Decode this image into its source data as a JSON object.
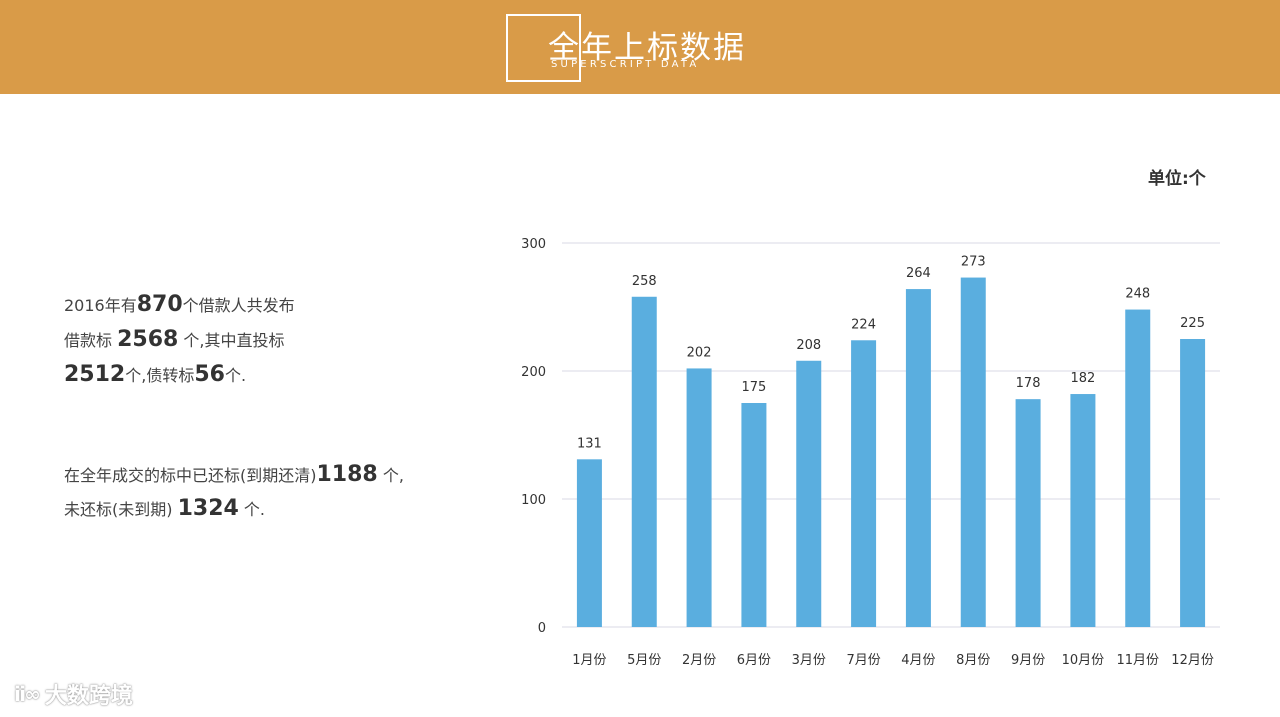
{
  "header": {
    "title": "全年上标数据",
    "subtitle": "SUPERSCRIPT DATA",
    "bg_color": "#D99B48"
  },
  "unit_label": "单位:个",
  "summary": {
    "p1_line1_pre": "2016年有",
    "p1_line1_num": "870",
    "p1_line1_post": "个借款人共发布",
    "p1_line2_pre": "借款标 ",
    "p1_line2_num": "2568",
    "p1_line2_post": " 个,其中直投标",
    "p1_line3_num1": "2512",
    "p1_line3_mid": "个,债转标",
    "p1_line3_num2": "56",
    "p1_line3_post": "个.",
    "p2_line1_pre": "在全年成交的标中已还标(到期还清)",
    "p2_line1_num": "1188",
    "p2_line1_post": " 个,",
    "p2_line2_pre": "未还标(未到期) ",
    "p2_line2_num": "1324",
    "p2_line2_post": " 个."
  },
  "watermark": {
    "icon": "ico-glyph",
    "icon_text": "ⅱ∞",
    "text": "大数跨境"
  },
  "chart_data": {
    "type": "bar",
    "categories": [
      "1月份",
      "5月份",
      "2月份",
      "6月份",
      "3月份",
      "7月份",
      "4月份",
      "8月份",
      "9月份",
      "10月份",
      "11月份",
      "12月份"
    ],
    "values": [
      131,
      258,
      202,
      175,
      208,
      224,
      264,
      273,
      178,
      182,
      248,
      225
    ],
    "title": "",
    "xlabel": "",
    "ylabel": "",
    "ylim": [
      0,
      300
    ],
    "yticks": [
      0,
      100,
      200,
      300
    ],
    "grid": true,
    "legend": "none",
    "bar_color": "#5AAEDF",
    "grid_color": "#D9D9E6"
  }
}
